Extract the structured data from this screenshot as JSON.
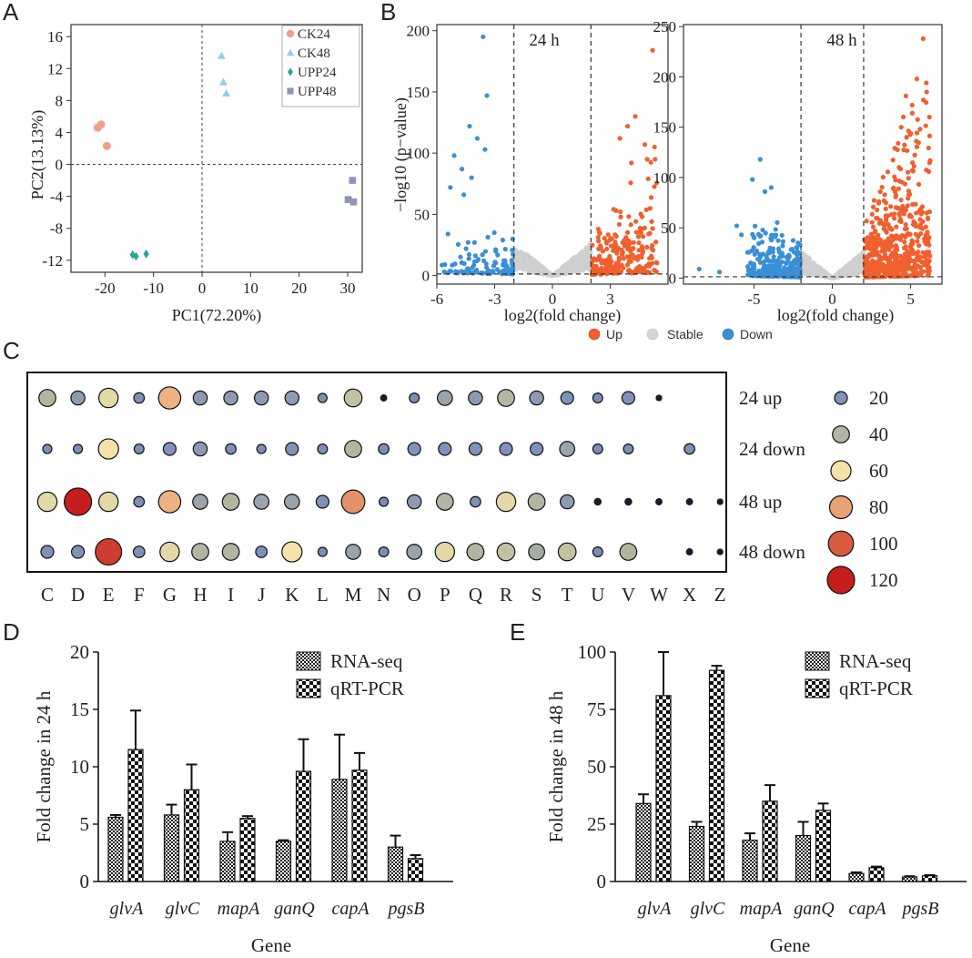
{
  "panels": {
    "a": "A",
    "b": "B",
    "c": "C",
    "d": "D",
    "e": "E"
  },
  "colors": {
    "ck24": "#f0a08a",
    "ck48": "#8fd0e8",
    "upp24": "#2aa59a",
    "upp48": "#8e96b6",
    "up": "#f0602e",
    "stable": "#cfcfcf",
    "down": "#3a8fd6"
  },
  "chart_data": [
    {
      "type": "scatter",
      "panel": "A",
      "xlabel": "PC1(72.20%)",
      "ylabel": "PC2(13.13%)",
      "xlim": [
        -27,
        33
      ],
      "ylim": [
        -13.5,
        17.5
      ],
      "xticks": [
        -20,
        -10,
        0,
        10,
        20,
        30
      ],
      "yticks": [
        16,
        12,
        8,
        4,
        0,
        -4,
        -8,
        -12
      ],
      "series": [
        {
          "name": "CK24",
          "marker": "circle",
          "color": "#f0a08a",
          "points": [
            [
              -21.5,
              4.6
            ],
            [
              -20.8,
              5.0
            ],
            [
              -19.6,
              2.3
            ]
          ]
        },
        {
          "name": "CK48",
          "marker": "triangle",
          "color": "#8fd0e8",
          "points": [
            [
              4.0,
              13.6
            ],
            [
              4.4,
              10.3
            ],
            [
              5.0,
              8.9
            ]
          ]
        },
        {
          "name": "UPP24",
          "marker": "diamond",
          "color": "#2aa59a",
          "points": [
            [
              -14.3,
              -11.3
            ],
            [
              -13.6,
              -11.5
            ],
            [
              -11.5,
              -11.2
            ]
          ]
        },
        {
          "name": "UPP48",
          "marker": "square",
          "color": "#8e96b6",
          "points": [
            [
              31.0,
              -2.0
            ],
            [
              30.1,
              -4.4
            ],
            [
              31.2,
              -4.7
            ]
          ]
        }
      ]
    },
    {
      "type": "scatter",
      "panel": "B-24h",
      "annotation": "24 h",
      "xlabel": "log2(fold change)",
      "ylabel": "−log10 (p−value)",
      "xlim": [
        -6,
        6
      ],
      "ylim": [
        -7,
        205
      ],
      "xticks": [
        -6,
        -3,
        0,
        3
      ],
      "yticks": [
        0,
        50,
        100,
        150,
        200
      ],
      "thresholds": {
        "x": [
          -2,
          2
        ],
        "y": 1.3
      },
      "up_extremes": [
        [
          5.2,
          184
        ],
        [
          4.3,
          130
        ],
        [
          3.9,
          122
        ],
        [
          3.5,
          112
        ],
        [
          4.8,
          107
        ],
        [
          5.3,
          105
        ],
        [
          4.1,
          92
        ]
      ],
      "down_extremes": [
        [
          -3.6,
          195
        ],
        [
          -3.4,
          147
        ],
        [
          -4.3,
          122
        ],
        [
          -3.9,
          112
        ],
        [
          -3.5,
          103
        ],
        [
          -5.1,
          98
        ],
        [
          -4.7,
          87
        ],
        [
          -4.2,
          80
        ],
        [
          -5.3,
          72
        ],
        [
          -4.6,
          66
        ]
      ],
      "scatter_seed_counts": {
        "up": 230,
        "down": 110,
        "stable": 520
      }
    },
    {
      "type": "scatter",
      "panel": "B-48h",
      "annotation": "48 h",
      "xlabel": "log2(fold change)",
      "xlim": [
        -9.5,
        7
      ],
      "ylim": [
        -6,
        252
      ],
      "xticks": [
        -5,
        0,
        5
      ],
      "yticks": [
        0,
        50,
        100,
        150,
        200,
        250
      ],
      "thresholds": {
        "x": [
          -2,
          2
        ],
        "y": 1.3
      },
      "up_extremes": [
        [
          5.8,
          238
        ],
        [
          5.4,
          198
        ],
        [
          6.0,
          194
        ],
        [
          4.7,
          181
        ],
        [
          5.1,
          172
        ],
        [
          6.2,
          160
        ],
        [
          4.4,
          150
        ],
        [
          5.6,
          148
        ]
      ],
      "down_extremes": [
        [
          -4.6,
          118
        ],
        [
          -5.1,
          98
        ],
        [
          -3.9,
          90
        ],
        [
          -4.3,
          86
        ],
        [
          -6.1,
          52
        ],
        [
          -5.8,
          43
        ],
        [
          -8.5,
          9
        ],
        [
          -7.2,
          6
        ]
      ],
      "scatter_seed_counts": {
        "up": 560,
        "down": 330,
        "stable": 700
      }
    },
    {
      "type": "scatter",
      "panel": "C",
      "categories": [
        "C",
        "D",
        "E",
        "F",
        "G",
        "H",
        "I",
        "J",
        "K",
        "L",
        "M",
        "N",
        "O",
        "P",
        "Q",
        "R",
        "S",
        "T",
        "U",
        "V",
        "W",
        "X",
        "Z"
      ],
      "rows": [
        "24 up",
        "24 down",
        "48 up",
        "48 down"
      ],
      "size_legend": [
        20,
        40,
        60,
        80,
        100,
        120
      ],
      "values": [
        [
          40,
          25,
          55,
          12,
          75,
          25,
          25,
          25,
          25,
          8,
          45,
          4,
          10,
          30,
          25,
          40,
          25,
          20,
          10,
          20,
          3,
          0,
          0
        ],
        [
          8,
          8,
          60,
          10,
          20,
          25,
          12,
          8,
          20,
          10,
          40,
          12,
          20,
          20,
          20,
          20,
          20,
          30,
          10,
          10,
          0,
          12,
          0
        ],
        [
          55,
          120,
          55,
          12,
          75,
          30,
          40,
          30,
          30,
          20,
          85,
          8,
          25,
          40,
          12,
          55,
          40,
          25,
          5,
          5,
          4,
          4,
          3
        ],
        [
          20,
          20,
          110,
          15,
          55,
          40,
          40,
          15,
          60,
          8,
          30,
          10,
          30,
          55,
          40,
          45,
          35,
          45,
          10,
          40,
          0,
          4,
          3
        ]
      ]
    },
    {
      "type": "bar",
      "panel": "D",
      "categories": [
        "glvA",
        "glvC",
        "mapA",
        "ganQ",
        "capA",
        "pgsB"
      ],
      "series": [
        {
          "name": "RNA-seq",
          "values": [
            5.6,
            5.8,
            3.5,
            3.5,
            8.9,
            3.0
          ],
          "errors": [
            0.2,
            0.9,
            0.8,
            0.1,
            3.9,
            1.0
          ]
        },
        {
          "name": "qRT-PCR",
          "values": [
            11.5,
            8.0,
            5.5,
            9.6,
            9.7,
            2.0
          ],
          "errors": [
            3.4,
            2.2,
            0.2,
            2.8,
            1.5,
            0.3
          ]
        }
      ],
      "xlabel": "Gene",
      "ylabel": "Fold change in 24 h",
      "ylim": [
        0,
        20
      ],
      "yticks": [
        0,
        5,
        10,
        15,
        20
      ]
    },
    {
      "type": "bar",
      "panel": "E",
      "categories": [
        "glvA",
        "glvC",
        "mapA",
        "ganQ",
        "capA",
        "pgsB"
      ],
      "series": [
        {
          "name": "RNA-seq",
          "values": [
            34,
            24,
            18,
            20,
            3.5,
            2.0
          ],
          "errors": [
            4,
            2,
            3,
            6,
            0.5,
            0.3
          ]
        },
        {
          "name": "qRT-PCR",
          "values": [
            81,
            92,
            35,
            31,
            6,
            2.5
          ],
          "errors": [
            19,
            2,
            7,
            3,
            0.5,
            0.3
          ]
        }
      ],
      "xlabel": "Gene",
      "ylabel": "Fold change in 48 h",
      "ylim": [
        0,
        100
      ],
      "yticks": [
        0,
        25,
        50,
        75,
        100
      ]
    }
  ],
  "legend_b": [
    "Up",
    "Stable",
    "Down"
  ]
}
